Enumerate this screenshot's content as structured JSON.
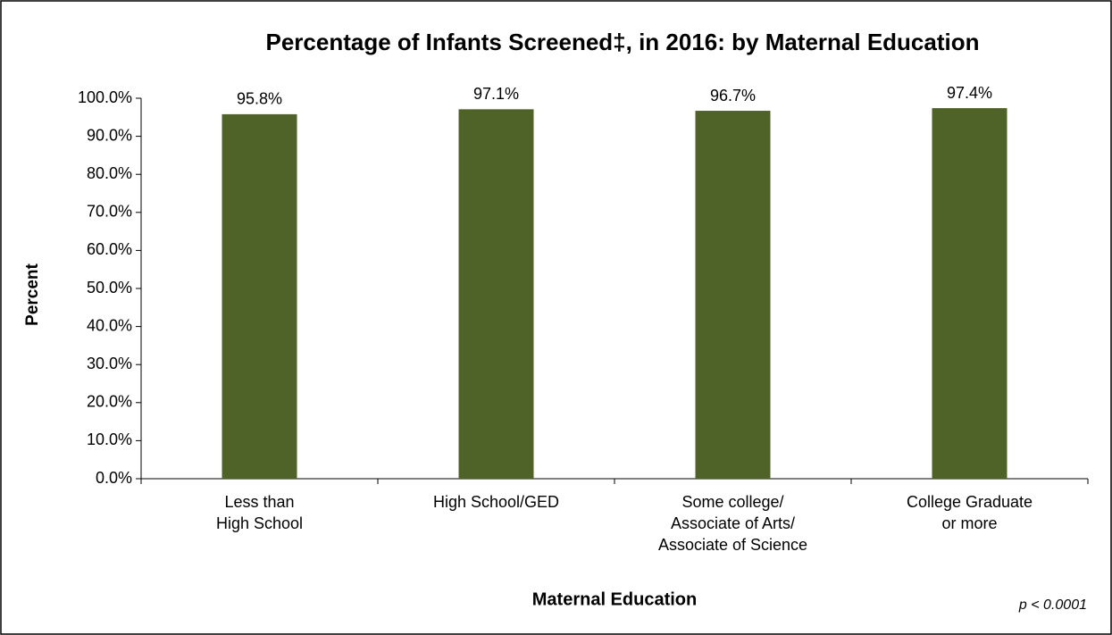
{
  "chart_data": {
    "type": "bar",
    "title": "Percentage of Infants Screened‡, in 2016: by Maternal Education",
    "x_label": "Maternal Education",
    "y_label": "Percent",
    "annotation": "p < 0.0001",
    "categories": [
      "Less than\nHigh School",
      "High School/GED",
      "Some college/\nAssociate of Arts/\nAssociate of Science",
      "College Graduate\nor more"
    ],
    "values": [
      95.8,
      97.1,
      96.7,
      97.4
    ],
    "value_labels": [
      "95.8%",
      "97.1%",
      "96.7%",
      "97.4%"
    ],
    "color": "#4f6228",
    "ylim": [
      0,
      100
    ],
    "yticks": [
      {
        "value": 0,
        "label": "0.0%"
      },
      {
        "value": 10,
        "label": "10.0%"
      },
      {
        "value": 20,
        "label": "20.0%"
      },
      {
        "value": 30,
        "label": "30.0%"
      },
      {
        "value": 40,
        "label": "40.0%"
      },
      {
        "value": 50,
        "label": "50.0%"
      },
      {
        "value": 60,
        "label": "60.0%"
      },
      {
        "value": 70,
        "label": "70.0%"
      },
      {
        "value": 80,
        "label": "80.0%"
      },
      {
        "value": 90,
        "label": "90.0%"
      },
      {
        "value": 100,
        "label": "100.0%"
      }
    ],
    "grid": false
  }
}
